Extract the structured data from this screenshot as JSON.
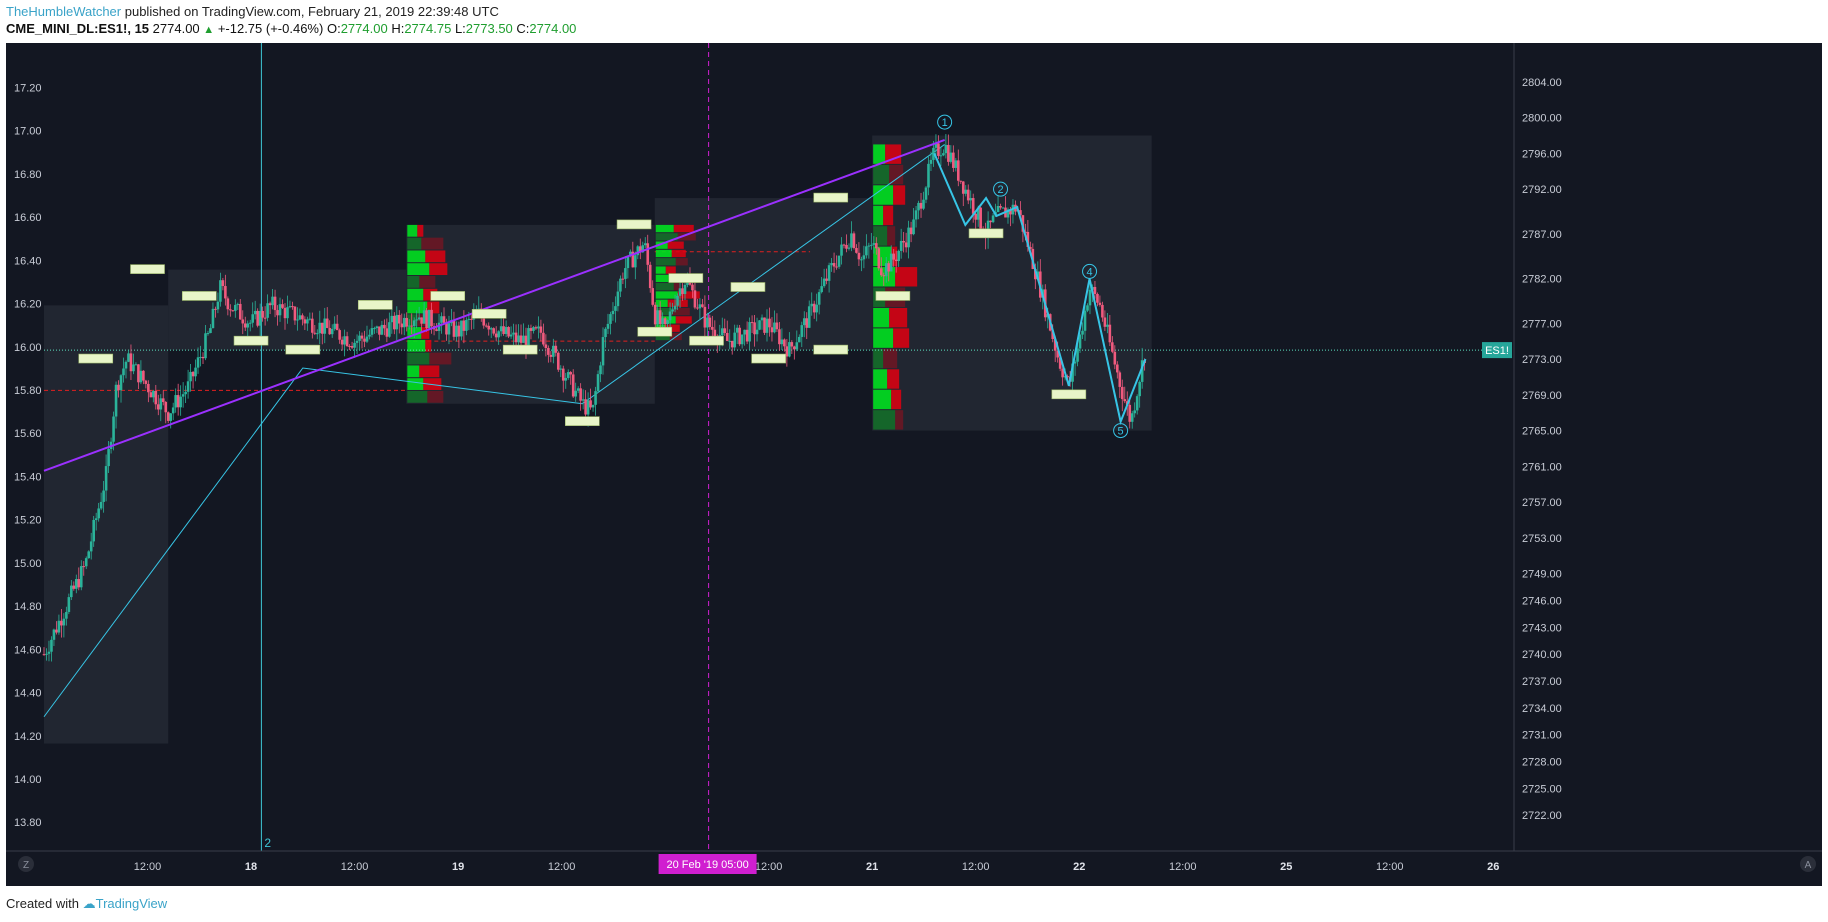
{
  "header": {
    "author": "TheHumbleWatcher",
    "published": " published on TradingView.com, February 21, 2019 22:39:48 UTC"
  },
  "quote": {
    "symbol": "CME_MINI_DL:ES1!, 15",
    "last": "2774.00",
    "change": "+-12.75 (+-0.46%)",
    "o_label": "O:",
    "o": "2774.00",
    "h_label": "H:",
    "h": "2774.75",
    "l_label": "L:",
    "l": "2773.50",
    "c_label": "C:",
    "c": "2774.00"
  },
  "footer": {
    "created_with": "Created with",
    "brand": "TradingView"
  },
  "colors": {
    "background": "#131722",
    "up_candle": "#2bb39a",
    "down_candle": "#f05a7e",
    "channel_line": "#9b30ff",
    "wave_line": "#37c5e6",
    "session_line": "#d01fd0",
    "price_line": "#5de0c0",
    "profile_buy": "#00e020",
    "profile_sell": "#e00010"
  },
  "chart_data": {
    "type": "candlestick",
    "symbol": "ES1!",
    "right_axis": {
      "min": 2720,
      "max": 2807,
      "ticks": [
        "2804.00",
        "2800.00",
        "2796.00",
        "2792.00",
        "2787.00",
        "2782.00",
        "2777.00",
        "2773.00",
        "2769.00",
        "2765.00",
        "2761.00",
        "2757.00",
        "2753.00",
        "2749.00",
        "2746.00",
        "2743.00",
        "2740.00",
        "2737.00",
        "2734.00",
        "2731.00",
        "2728.00",
        "2725.00",
        "2722.00"
      ]
    },
    "left_axis": {
      "min": 13.75,
      "max": 17.35,
      "ticks": [
        "17.20",
        "17.00",
        "16.80",
        "16.60",
        "16.40",
        "16.20",
        "16.00",
        "15.80",
        "15.60",
        "15.40",
        "15.20",
        "15.00",
        "14.80",
        "14.60",
        "14.40",
        "14.20",
        "14.00",
        "13.80"
      ]
    },
    "x_axis": {
      "ticks": [
        {
          "label": "12:00",
          "day": false,
          "t": 0.5
        },
        {
          "label": "18",
          "day": true,
          "t": 1.0
        },
        {
          "label": "12:00",
          "day": false,
          "t": 1.5
        },
        {
          "label": "19",
          "day": true,
          "t": 2.0
        },
        {
          "label": "12:00",
          "day": false,
          "t": 2.5
        },
        {
          "label": "20",
          "day": true,
          "t": 3.0
        },
        {
          "label": "12:00",
          "day": false,
          "t": 3.5
        },
        {
          "label": "21",
          "day": true,
          "t": 4.0
        },
        {
          "label": "12:00",
          "day": false,
          "t": 4.5
        },
        {
          "label": "22",
          "day": true,
          "t": 5.0
        },
        {
          "label": "12:00",
          "day": false,
          "t": 5.5
        },
        {
          "label": "25",
          "day": true,
          "t": 6.0
        },
        {
          "label": "12:00",
          "day": false,
          "t": 6.5
        },
        {
          "label": "26",
          "day": true,
          "t": 7.0
        }
      ],
      "t_min": 0.0,
      "t_max": 7.1,
      "session_marker": {
        "label": "20 Feb '19   05:00",
        "t": 3.21
      }
    },
    "price_label": "ES1!",
    "last_price": 2774.0,
    "zoom_left": "Z",
    "zoom_right": "A",
    "cursor_label": "2",
    "price_path": [
      [
        0.0,
        2740
      ],
      [
        0.1,
        2745
      ],
      [
        0.2,
        2750
      ],
      [
        0.3,
        2760
      ],
      [
        0.35,
        2770
      ],
      [
        0.4,
        2773
      ],
      [
        0.5,
        2770
      ],
      [
        0.6,
        2767
      ],
      [
        0.7,
        2770
      ],
      [
        0.8,
        2776
      ],
      [
        0.85,
        2781
      ],
      [
        0.9,
        2779
      ],
      [
        1.0,
        2777
      ],
      [
        1.1,
        2779
      ],
      [
        1.2,
        2778
      ],
      [
        1.3,
        2777
      ],
      [
        1.4,
        2776
      ],
      [
        1.5,
        2775
      ],
      [
        1.6,
        2776
      ],
      [
        1.7,
        2777
      ],
      [
        1.8,
        2778
      ],
      [
        1.9,
        2777
      ],
      [
        2.0,
        2776
      ],
      [
        2.1,
        2778
      ],
      [
        2.2,
        2776
      ],
      [
        2.3,
        2775
      ],
      [
        2.4,
        2776
      ],
      [
        2.5,
        2772
      ],
      [
        2.6,
        2768
      ],
      [
        2.65,
        2767
      ],
      [
        2.7,
        2775
      ],
      [
        2.8,
        2783
      ],
      [
        2.9,
        2786
      ],
      [
        2.95,
        2778
      ],
      [
        3.0,
        2776
      ],
      [
        3.05,
        2780
      ],
      [
        3.1,
        2782
      ],
      [
        3.2,
        2777
      ],
      [
        3.3,
        2775
      ],
      [
        3.4,
        2776
      ],
      [
        3.5,
        2777
      ],
      [
        3.6,
        2774
      ],
      [
        3.7,
        2778
      ],
      [
        3.8,
        2783
      ],
      [
        3.9,
        2787
      ],
      [
        3.95,
        2784
      ],
      [
        4.0,
        2786
      ],
      [
        4.05,
        2783
      ],
      [
        4.1,
        2784
      ],
      [
        4.2,
        2788
      ],
      [
        4.3,
        2796
      ],
      [
        4.35,
        2797
      ],
      [
        4.45,
        2792
      ],
      [
        4.55,
        2787
      ],
      [
        4.6,
        2789
      ],
      [
        4.7,
        2790
      ],
      [
        4.8,
        2782
      ],
      [
        4.9,
        2773
      ],
      [
        4.95,
        2770
      ],
      [
        5.0,
        2775
      ],
      [
        5.05,
        2781
      ],
      [
        5.1,
        2779
      ],
      [
        5.2,
        2770
      ],
      [
        5.25,
        2766
      ],
      [
        5.3,
        2772
      ],
      [
        5.32,
        2774
      ]
    ],
    "channel_line": [
      [
        0.0,
        2760.5
      ],
      [
        4.35,
        2797.5
      ]
    ],
    "wave_path": [
      [
        4.3,
        2796
      ],
      [
        4.45,
        2788
      ],
      [
        4.55,
        2791
      ],
      [
        4.6,
        2789
      ],
      [
        4.7,
        2790
      ],
      [
        4.95,
        2770
      ],
      [
        5.05,
        2782
      ],
      [
        5.2,
        2766
      ],
      [
        5.32,
        2773
      ]
    ],
    "long_wave": [
      [
        0.0,
        2733
      ],
      [
        1.25,
        2772
      ],
      [
        2.6,
        2768
      ],
      [
        4.35,
        2797
      ]
    ],
    "wave_labels": [
      {
        "label": "2",
        "t": 4.62,
        "p": 2792
      },
      {
        "label": "4",
        "t": 5.05,
        "p": 2782.8
      },
      {
        "label": "5",
        "t": 5.2,
        "p": 2765
      },
      {
        "label": "1",
        "t": 4.35,
        "p": 2799.5
      }
    ],
    "value_boxes": [
      {
        "t0": 0.0,
        "t1": 0.6,
        "p0": 2730,
        "p1": 2779
      },
      {
        "t0": 0.6,
        "t1": 1.75,
        "p0": 2774,
        "p1": 2783
      },
      {
        "t0": 1.75,
        "t1": 2.95,
        "p0": 2768,
        "p1": 2788
      },
      {
        "t0": 2.95,
        "t1": 4.0,
        "p0": 2774,
        "p1": 2791
      },
      {
        "t0": 4.0,
        "t1": 5.35,
        "p0": 2765,
        "p1": 2798
      }
    ],
    "red_dashed_levels": [
      {
        "t0": 0.0,
        "t1": 1.75,
        "p": 2769.5
      },
      {
        "t0": 1.75,
        "t1": 2.95,
        "p": 2775
      },
      {
        "t0": 2.95,
        "t1": 3.7,
        "p": 2785
      }
    ],
    "profiles": [
      {
        "t": 1.75,
        "p_top": 2788,
        "p_bottom": 2768
      },
      {
        "t": 2.95,
        "p_top": 2788,
        "p_bottom": 2775
      },
      {
        "t": 4.0,
        "p_top": 2797,
        "p_bottom": 2765
      }
    ]
  }
}
